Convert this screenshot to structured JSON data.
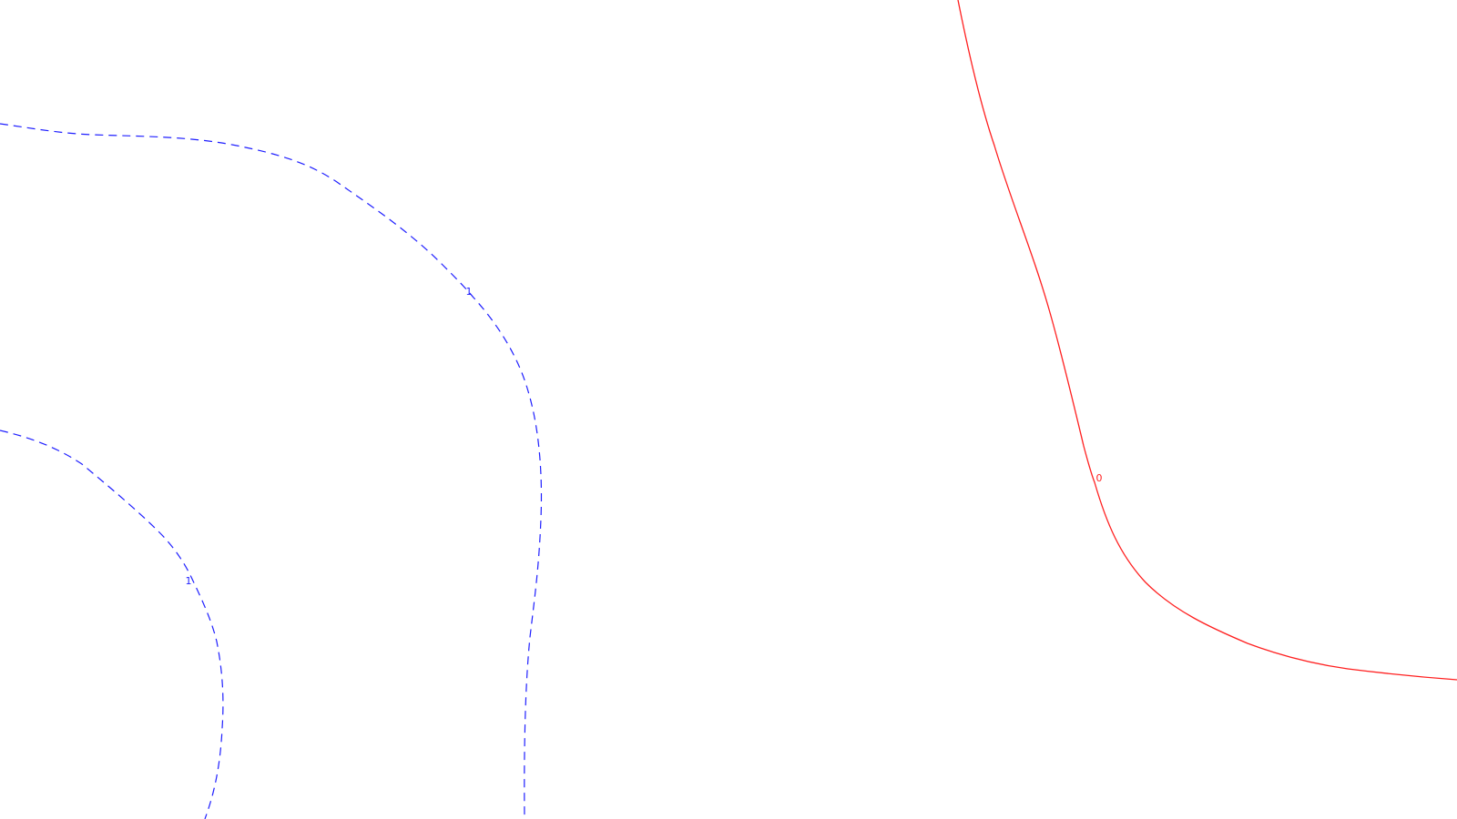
{
  "map": {
    "contours": [
      {
        "id": "contour-1-upper",
        "value": "1",
        "style": "dashed",
        "color": "#1f1fff"
      },
      {
        "id": "contour-1-lower",
        "value": "1",
        "style": "dashed",
        "color": "#1f1fff"
      },
      {
        "id": "contour-0",
        "value": "0",
        "style": "solid",
        "color": "#ff1f1f"
      }
    ]
  }
}
